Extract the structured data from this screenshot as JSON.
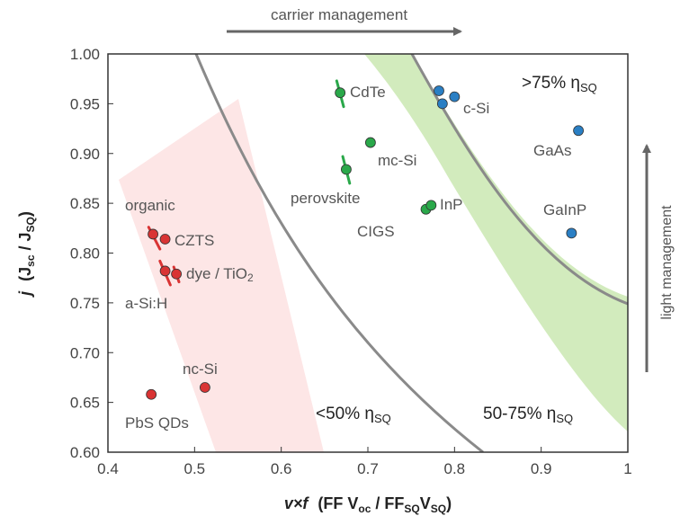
{
  "chart_data": {
    "type": "scatter",
    "title": "",
    "xlabel": {
      "prefix": "v×f",
      "open": "(FF V",
      "s1": "oc",
      "mid": " / FF",
      "s2": "SQ",
      "v": "V",
      "s3": "SQ",
      "close": ")"
    },
    "ylabel": {
      "prefix": "j",
      "open": "(J",
      "s1": "sc",
      "mid": " / J",
      "s2": "SQ",
      "close": ")"
    },
    "xlim": [
      0.4,
      1.0
    ],
    "ylim": [
      0.6,
      1.0
    ],
    "x_ticks": [
      "0.4",
      "0.5",
      "0.6",
      "0.7",
      "0.8",
      "0.9",
      "1"
    ],
    "y_ticks": [
      "0.60",
      "0.65",
      "0.70",
      "0.75",
      "0.80",
      "0.85",
      "0.90",
      "0.95",
      "1.00"
    ],
    "top_arrow_label": "carrier management",
    "right_arrow_label": "light management",
    "regions": [
      {
        "label": "<50% η",
        "sub": "SQ",
        "color": "#fbdcdc"
      },
      {
        "label": "50-75% η",
        "sub": "SQ",
        "color": "#cfe8b8"
      },
      {
        "label": ">75% η",
        "sub": "SQ",
        "color": "#ffffff"
      }
    ],
    "series": [
      {
        "color": "#d93434",
        "points": [
          {
            "label": "organic",
            "x": 0.452,
            "y": 0.819
          },
          {
            "label": "CZTS",
            "x": 0.466,
            "y": 0.814
          },
          {
            "label": "dye / TiO",
            "sub": "2",
            "x": 0.479,
            "y": 0.779
          },
          {
            "label": "a-Si:H",
            "x": 0.466,
            "y": 0.782
          },
          {
            "label": "nc-Si",
            "x": 0.512,
            "y": 0.665
          },
          {
            "label": "PbS QDs",
            "x": 0.45,
            "y": 0.658
          }
        ]
      },
      {
        "color": "#2aa84a",
        "points": [
          {
            "label": "CdTe",
            "x": 0.668,
            "y": 0.961
          },
          {
            "label": "mc-Si",
            "x": 0.703,
            "y": 0.911
          },
          {
            "label": "perovskite",
            "x": 0.675,
            "y": 0.884
          },
          {
            "label": "CIGS",
            "x": 0.767,
            "y": 0.844
          },
          {
            "label": "InP",
            "x": 0.773,
            "y": 0.848
          }
        ]
      },
      {
        "color": "#2a7fc4",
        "points": [
          {
            "label": "c-Si",
            "x": 0.782,
            "y": 0.963
          },
          {
            "label": "",
            "x": 0.8,
            "y": 0.957
          },
          {
            "label": "",
            "x": 0.786,
            "y": 0.95
          },
          {
            "label": "GaAs",
            "x": 0.943,
            "y": 0.923
          },
          {
            "label": "GaInP",
            "x": 0.935,
            "y": 0.82
          }
        ]
      }
    ]
  }
}
